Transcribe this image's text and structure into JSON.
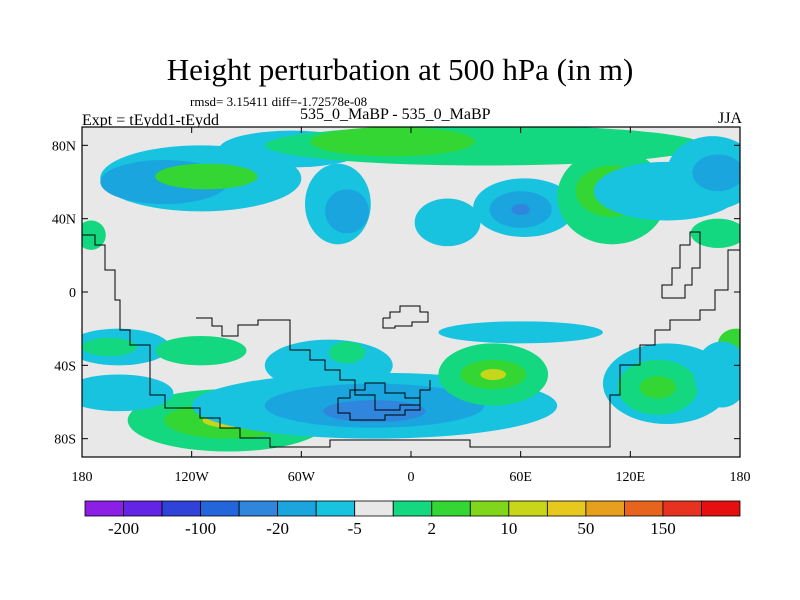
{
  "chart_data": {
    "type": "contour-map",
    "title": "Height perturbation at 500 hPa (in m)",
    "stats_line": "rmsd= 3.15411 diff=-1.72578e-08",
    "left_label": "Expt = tEydd1-tEydd",
    "center_label": "535_0_MaBP - 535_0_MaBP",
    "right_label": "JJA",
    "xlim": [
      -180,
      180
    ],
    "ylim": [
      -90,
      90
    ],
    "x_ticks": [
      {
        "value": -180,
        "label": "180"
      },
      {
        "value": -120,
        "label": "120W"
      },
      {
        "value": -60,
        "label": "60W"
      },
      {
        "value": 0,
        "label": "0"
      },
      {
        "value": 60,
        "label": "60E"
      },
      {
        "value": 120,
        "label": "120E"
      },
      {
        "value": 180,
        "label": "180"
      }
    ],
    "y_ticks": [
      {
        "value": 80,
        "label": "80N"
      },
      {
        "value": 40,
        "label": "40N"
      },
      {
        "value": 0,
        "label": "0"
      },
      {
        "value": -40,
        "label": "40S"
      },
      {
        "value": -80,
        "label": "80S"
      }
    ],
    "colorbar": {
      "colors": [
        "#8c1ee6",
        "#6424e6",
        "#2f43d9",
        "#2366db",
        "#2f86dc",
        "#1aa5de",
        "#17c3df",
        "#e8e8e8",
        "#14d880",
        "#33d633",
        "#80d61a",
        "#c8d619",
        "#e6c81e",
        "#e6a01e",
        "#e6641e",
        "#e6321e",
        "#e60f0f"
      ],
      "labels": [
        {
          "after_box": 1,
          "text": "-200"
        },
        {
          "after_box": 3,
          "text": "-100"
        },
        {
          "after_box": 5,
          "text": "-20"
        },
        {
          "after_box": 7,
          "text": "-5"
        },
        {
          "after_box": 9,
          "text": "2"
        },
        {
          "after_box": 11,
          "text": "10"
        },
        {
          "after_box": 13,
          "text": "50"
        },
        {
          "after_box": 15,
          "text": "150"
        }
      ]
    },
    "field_blobs": [
      {
        "lon": -115,
        "lat": 62,
        "rlon": 55,
        "rlat": 18,
        "level": 6
      },
      {
        "lon": -135,
        "lat": 60,
        "rlon": 35,
        "rlat": 12,
        "level": 5
      },
      {
        "lon": -112,
        "lat": 63,
        "rlon": 28,
        "rlat": 7,
        "level": 9
      },
      {
        "lon": -65,
        "lat": 78,
        "rlon": 40,
        "rlat": 10,
        "level": 6
      },
      {
        "lon": -40,
        "lat": 48,
        "rlon": 18,
        "rlat": 22,
        "level": 6
      },
      {
        "lon": -35,
        "lat": 44,
        "rlon": 12,
        "rlat": 12,
        "level": 5
      },
      {
        "lon": 40,
        "lat": 80,
        "rlon": 120,
        "rlat": 11,
        "level": 8
      },
      {
        "lon": -10,
        "lat": 82,
        "rlon": 45,
        "rlat": 8,
        "level": 9
      },
      {
        "lon": 20,
        "lat": 38,
        "rlon": 18,
        "rlat": 13,
        "level": 6
      },
      {
        "lon": 62,
        "lat": 46,
        "rlon": 28,
        "rlat": 16,
        "level": 6
      },
      {
        "lon": 60,
        "lat": 45,
        "rlon": 17,
        "rlat": 10,
        "level": 5
      },
      {
        "lon": 60,
        "lat": 45,
        "rlon": 5,
        "rlat": 3,
        "level": 4
      },
      {
        "lon": 110,
        "lat": 52,
        "rlon": 30,
        "rlat": 26,
        "level": 8
      },
      {
        "lon": 110,
        "lat": 55,
        "rlon": 20,
        "rlat": 14,
        "level": 9
      },
      {
        "lon": 140,
        "lat": 55,
        "rlon": 40,
        "rlat": 16,
        "level": 6
      },
      {
        "lon": 165,
        "lat": 65,
        "rlon": 25,
        "rlat": 20,
        "level": 6
      },
      {
        "lon": 168,
        "lat": 65,
        "rlon": 14,
        "rlat": 10,
        "level": 5
      },
      {
        "lon": 168,
        "lat": 32,
        "rlon": 15,
        "rlat": 8,
        "level": 8
      },
      {
        "lon": -175,
        "lat": 31,
        "rlon": 8,
        "rlat": 8,
        "level": 8
      },
      {
        "lon": -160,
        "lat": -30,
        "rlon": 28,
        "rlat": 10,
        "level": 6
      },
      {
        "lon": -165,
        "lat": -30,
        "rlon": 15,
        "rlat": 5,
        "level": 8
      },
      {
        "lon": -115,
        "lat": -32,
        "rlon": 25,
        "rlat": 8,
        "level": 8
      },
      {
        "lon": -100,
        "lat": -70,
        "rlon": 55,
        "rlat": 17,
        "level": 8
      },
      {
        "lon": -100,
        "lat": -70,
        "rlon": 35,
        "rlat": 10,
        "level": 9
      },
      {
        "lon": -100,
        "lat": -70,
        "rlon": 14,
        "rlat": 4,
        "level": 11
      },
      {
        "lon": -160,
        "lat": -55,
        "rlon": 30,
        "rlat": 10,
        "level": 6
      },
      {
        "lon": -45,
        "lat": -40,
        "rlon": 35,
        "rlat": 14,
        "level": 6
      },
      {
        "lon": -20,
        "lat": -62,
        "rlon": 100,
        "rlat": 18,
        "level": 6
      },
      {
        "lon": -20,
        "lat": -62,
        "rlon": 60,
        "rlat": 12,
        "level": 5
      },
      {
        "lon": -20,
        "lat": -65,
        "rlon": 28,
        "rlat": 6,
        "level": 4
      },
      {
        "lon": -35,
        "lat": -33,
        "rlon": 10,
        "rlat": 6,
        "level": 8
      },
      {
        "lon": 45,
        "lat": -45,
        "rlon": 30,
        "rlat": 17,
        "level": 8
      },
      {
        "lon": 45,
        "lat": -45,
        "rlon": 18,
        "rlat": 8,
        "level": 9
      },
      {
        "lon": 45,
        "lat": -45,
        "rlon": 7,
        "rlat": 3,
        "level": 11
      },
      {
        "lon": 60,
        "lat": -22,
        "rlon": 45,
        "rlat": 6,
        "level": 6
      },
      {
        "lon": 140,
        "lat": -50,
        "rlon": 35,
        "rlat": 22,
        "level": 6
      },
      {
        "lon": 135,
        "lat": -52,
        "rlon": 22,
        "rlat": 15,
        "level": 8
      },
      {
        "lon": 135,
        "lat": -52,
        "rlon": 10,
        "rlat": 6,
        "level": 9
      },
      {
        "lon": 178,
        "lat": -28,
        "rlon": 10,
        "rlat": 8,
        "level": 9
      },
      {
        "lon": 170,
        "lat": -45,
        "rlon": 15,
        "rlat": 18,
        "level": 6
      }
    ]
  }
}
